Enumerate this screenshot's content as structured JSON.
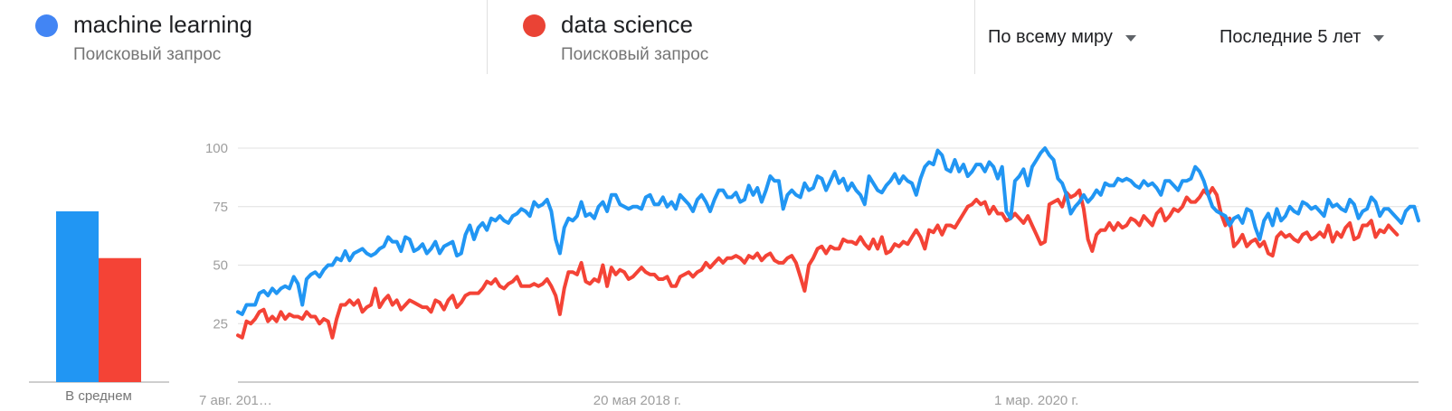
{
  "terms": [
    {
      "name": "machine learning",
      "type": "Поисковый запрос",
      "color": "#4285f4"
    },
    {
      "name": "data science",
      "type": "Поисковый запрос",
      "color": "#ea4335"
    }
  ],
  "filters": {
    "region": "По всему миру",
    "period": "Последние 5 лет",
    "region_icon": "caret-down-icon",
    "period_icon": "caret-down-icon"
  },
  "chart_data": {
    "type": "line",
    "averages_label": "В среднем",
    "averages": [
      {
        "name": "machine learning",
        "value": 73,
        "color": "#2196f3"
      },
      {
        "name": "data science",
        "value": 53,
        "color": "#f44336"
      }
    ],
    "yticks": [
      25,
      50,
      75,
      100
    ],
    "ylim": [
      0,
      100
    ],
    "x_tick_labels": [
      {
        "label": "7 авг. 201…",
        "index": 0
      },
      {
        "label": "20 мая 2018 г.",
        "index": 93
      },
      {
        "label": "1 мар. 2020 г.",
        "index": 186
      }
    ],
    "series": [
      {
        "name": "machine learning",
        "color": "#2196f3",
        "values": [
          30,
          29,
          33,
          33,
          33,
          38,
          39,
          37,
          40,
          38,
          40,
          41,
          40,
          45,
          42,
          33,
          44,
          46,
          47,
          45,
          48,
          50,
          50,
          53,
          52,
          56,
          52,
          55,
          56,
          57,
          55,
          54,
          55,
          57,
          58,
          62,
          60,
          60,
          56,
          62,
          61,
          56,
          57,
          59,
          55,
          57,
          60,
          55,
          58,
          59,
          60,
          54,
          55,
          63,
          67,
          61,
          66,
          68,
          65,
          70,
          69,
          71,
          69,
          68,
          71,
          72,
          74,
          73,
          71,
          77,
          75,
          76,
          78,
          73,
          61,
          55,
          66,
          70,
          69,
          71,
          77,
          71,
          72,
          70,
          75,
          77,
          73,
          80,
          80,
          76,
          75,
          74,
          75,
          75,
          74,
          79,
          80,
          76,
          76,
          79,
          75,
          77,
          74,
          80,
          78,
          76,
          73,
          78,
          80,
          77,
          73,
          78,
          82,
          82,
          79,
          79,
          81,
          77,
          78,
          84,
          80,
          83,
          77,
          82,
          88,
          86,
          86,
          74,
          80,
          82,
          80,
          79,
          85,
          82,
          83,
          88,
          87,
          82,
          86,
          90,
          85,
          87,
          82,
          85,
          82,
          80,
          76,
          88,
          85,
          82,
          81,
          84,
          86,
          89,
          85,
          88,
          86,
          85,
          80,
          87,
          92,
          94,
          93,
          99,
          97,
          91,
          90,
          95,
          90,
          93,
          88,
          90,
          93,
          93,
          90,
          94,
          92,
          87,
          92,
          73,
          70,
          86,
          88,
          91,
          84,
          92,
          95,
          98,
          100,
          97,
          95,
          87,
          85,
          80,
          72,
          75,
          77,
          80,
          77,
          79,
          82,
          80,
          85,
          84,
          84,
          87,
          86,
          87,
          86,
          84,
          83,
          86,
          84,
          85,
          83,
          80,
          86,
          86,
          84,
          82,
          86,
          86,
          87,
          92,
          90,
          86,
          80,
          75,
          73,
          72,
          71,
          67,
          70,
          71,
          68,
          74,
          73,
          66,
          61,
          69,
          72,
          67,
          74,
          69,
          71,
          75,
          73,
          72,
          77,
          76,
          74,
          75,
          73,
          71,
          78,
          75,
          76,
          74,
          73,
          78,
          76,
          70,
          73,
          74,
          79,
          77,
          71,
          74,
          74,
          72,
          70,
          68,
          73,
          75,
          75,
          69
        ]
      },
      {
        "name": "data science",
        "color": "#f44336",
        "values": [
          20,
          19,
          26,
          25,
          27,
          30,
          31,
          26,
          28,
          26,
          30,
          27,
          29,
          28,
          28,
          27,
          30,
          28,
          28,
          25,
          27,
          26,
          19,
          27,
          33,
          33,
          35,
          33,
          35,
          30,
          32,
          33,
          40,
          32,
          35,
          37,
          33,
          35,
          31,
          33,
          35,
          34,
          33,
          32,
          32,
          30,
          35,
          34,
          31,
          35,
          37,
          32,
          34,
          37,
          38,
          38,
          38,
          40,
          43,
          42,
          44,
          41,
          40,
          42,
          43,
          45,
          41,
          41,
          41,
          42,
          41,
          42,
          44,
          41,
          37,
          29,
          40,
          47,
          47,
          46,
          51,
          43,
          42,
          44,
          43,
          50,
          41,
          49,
          46,
          48,
          47,
          44,
          45,
          47,
          49,
          47,
          46,
          46,
          44,
          44,
          45,
          41,
          41,
          45,
          46,
          47,
          45,
          47,
          48,
          51,
          49,
          51,
          53,
          51,
          53,
          53,
          54,
          53,
          51,
          54,
          53,
          55,
          52,
          54,
          55,
          52,
          51,
          51,
          53,
          54,
          51,
          45,
          39,
          50,
          53,
          57,
          58,
          55,
          58,
          57,
          57,
          61,
          60,
          60,
          59,
          62,
          59,
          57,
          61,
          57,
          62,
          55,
          56,
          59,
          58,
          60,
          59,
          62,
          65,
          62,
          57,
          65,
          64,
          67,
          63,
          67,
          67,
          66,
          69,
          72,
          75,
          76,
          78,
          76,
          77,
          72,
          75,
          72,
          72,
          69,
          70,
          72,
          70,
          68,
          71,
          67,
          63,
          59,
          60,
          76,
          77,
          78,
          75,
          81,
          79,
          80,
          82,
          74,
          61,
          56,
          63,
          65,
          65,
          68,
          65,
          68,
          66,
          67,
          70,
          69,
          67,
          71,
          69,
          67,
          72,
          74,
          69,
          71,
          74,
          73,
          75,
          79,
          77,
          77,
          79,
          82,
          80,
          83,
          80,
          72,
          67,
          70,
          58,
          60,
          63,
          58,
          60,
          61,
          58,
          60,
          55,
          54,
          62,
          64,
          62,
          63,
          61,
          60,
          63,
          64,
          61,
          62,
          64,
          62,
          67,
          60,
          64,
          62,
          66,
          68,
          61,
          62,
          67,
          67,
          69,
          62,
          65,
          64,
          67,
          65,
          63
        ]
      }
    ]
  }
}
